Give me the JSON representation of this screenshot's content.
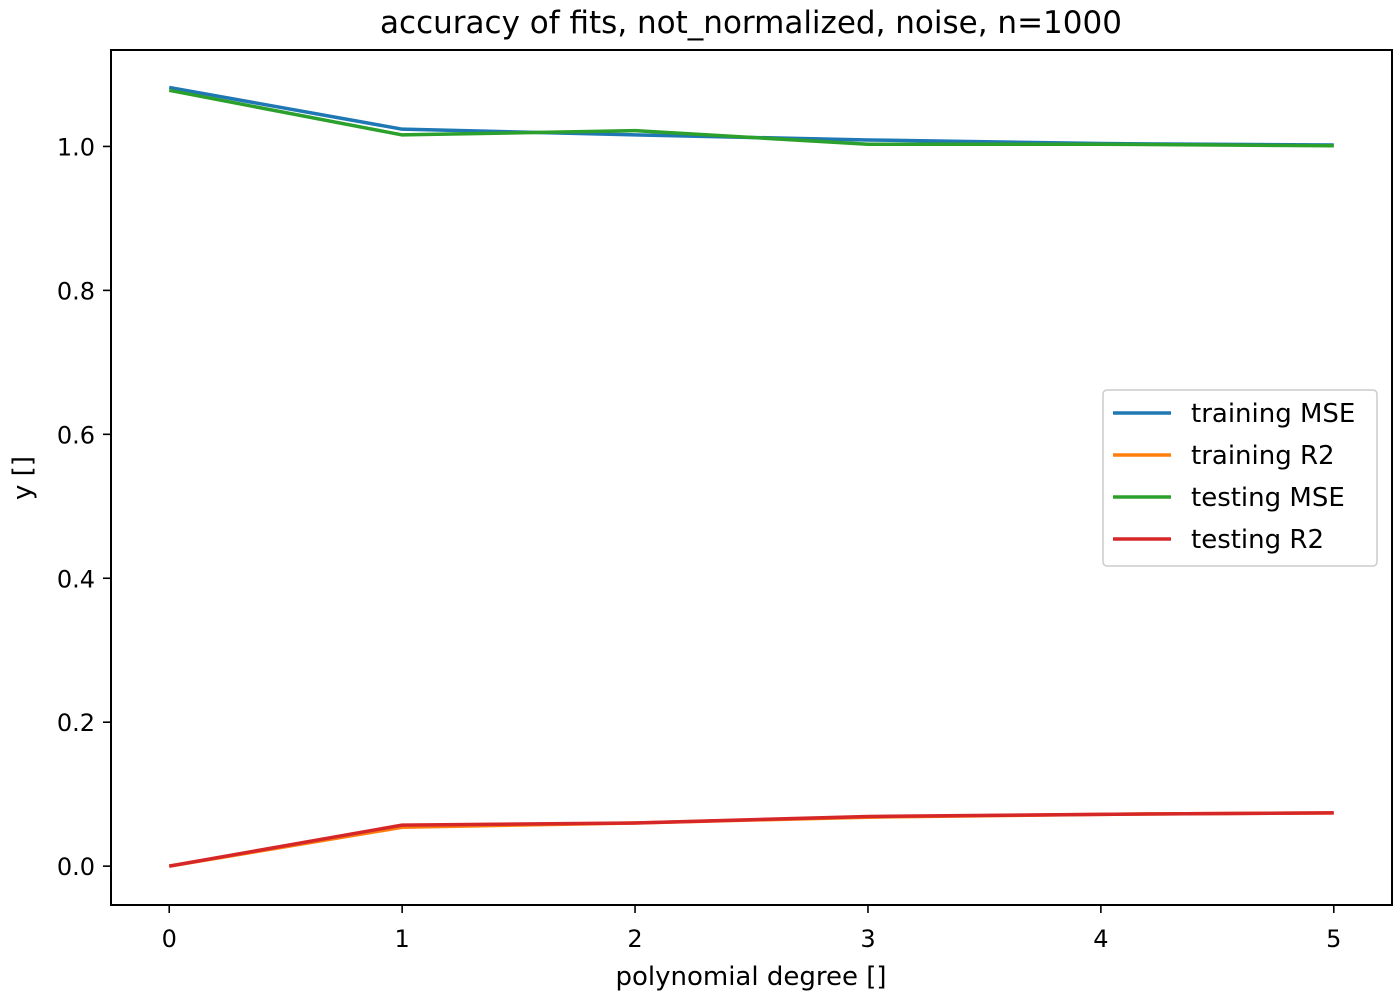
{
  "chart_data": {
    "type": "line",
    "title": "accuracy of fits, not_normalized, noise, n=1000",
    "xlabel": "polynomial degree []",
    "ylabel": "y []",
    "xlim": [
      -0.25,
      5.25
    ],
    "ylim": [
      -0.054,
      1.134
    ],
    "x": [
      0,
      1,
      2,
      3,
      4,
      5
    ],
    "xticks": [
      0,
      1,
      2,
      3,
      4,
      5
    ],
    "xtick_labels": [
      "0",
      "1",
      "2",
      "3",
      "4",
      "5"
    ],
    "yticks": [
      0.0,
      0.2,
      0.4,
      0.6,
      0.8,
      1.0
    ],
    "ytick_labels": [
      "0.0",
      "0.2",
      "0.4",
      "0.6",
      "0.8",
      "1.0"
    ],
    "grid": false,
    "legend_position": "center-right",
    "series": [
      {
        "name": "training MSE",
        "color": "#1f77b4",
        "values": [
          1.082,
          1.024,
          1.016,
          1.009,
          1.004,
          1.002
        ]
      },
      {
        "name": "training R2",
        "color": "#ff7f0e",
        "values": [
          0.0,
          0.054,
          0.06,
          0.068,
          0.072,
          0.074
        ]
      },
      {
        "name": "testing MSE",
        "color": "#2ca02c",
        "values": [
          1.078,
          1.016,
          1.022,
          1.003,
          1.003,
          1.001
        ]
      },
      {
        "name": "testing R2",
        "color": "#d62728",
        "values": [
          0.0,
          0.057,
          0.06,
          0.069,
          0.072,
          0.074
        ]
      }
    ]
  }
}
